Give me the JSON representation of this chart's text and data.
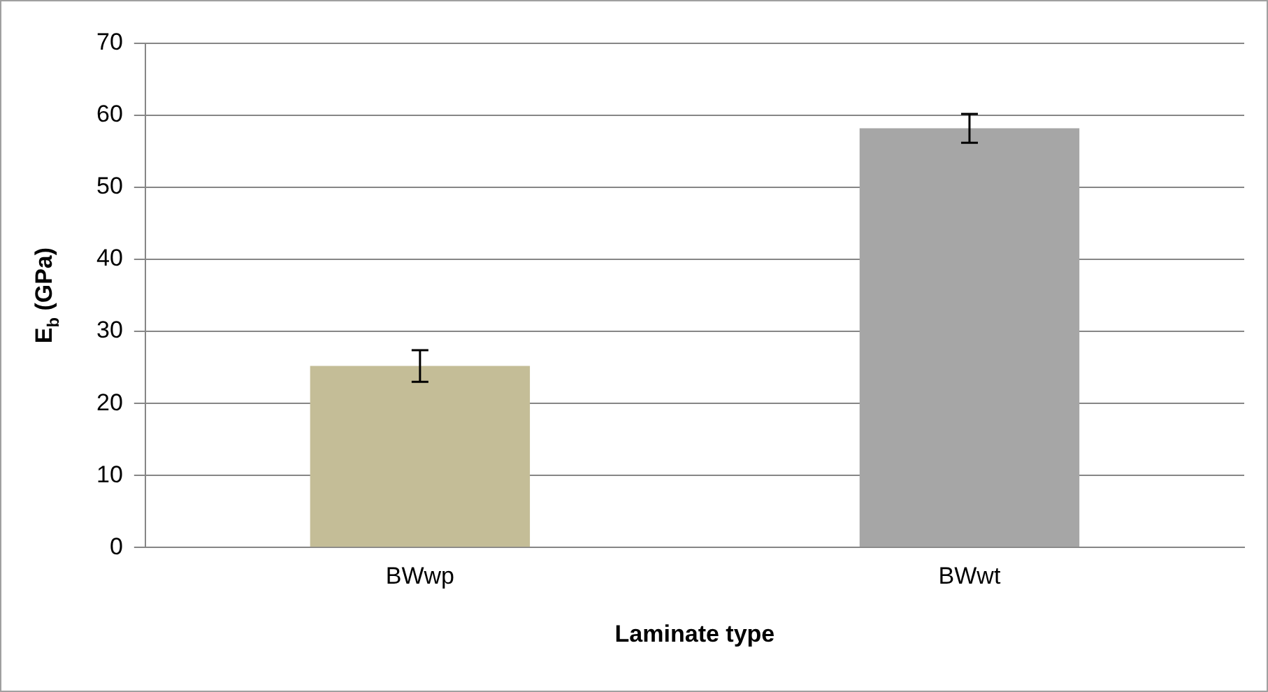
{
  "chart_data": {
    "type": "bar",
    "xlabel": "Laminate type",
    "ylabel": "E$_{b}$ (GPa)",
    "categories": [
      "BWwp",
      "BWwt"
    ],
    "values": [
      25.2,
      58.2
    ],
    "colors": [
      "#c4bd97",
      "#a6a6a6"
    ],
    "errors": [
      2.2,
      2.0
    ],
    "ylim": [
      0,
      70
    ],
    "yticks": [
      0,
      10,
      20,
      30,
      40,
      50,
      60,
      70
    ],
    "grid": "y",
    "legend": false
  }
}
